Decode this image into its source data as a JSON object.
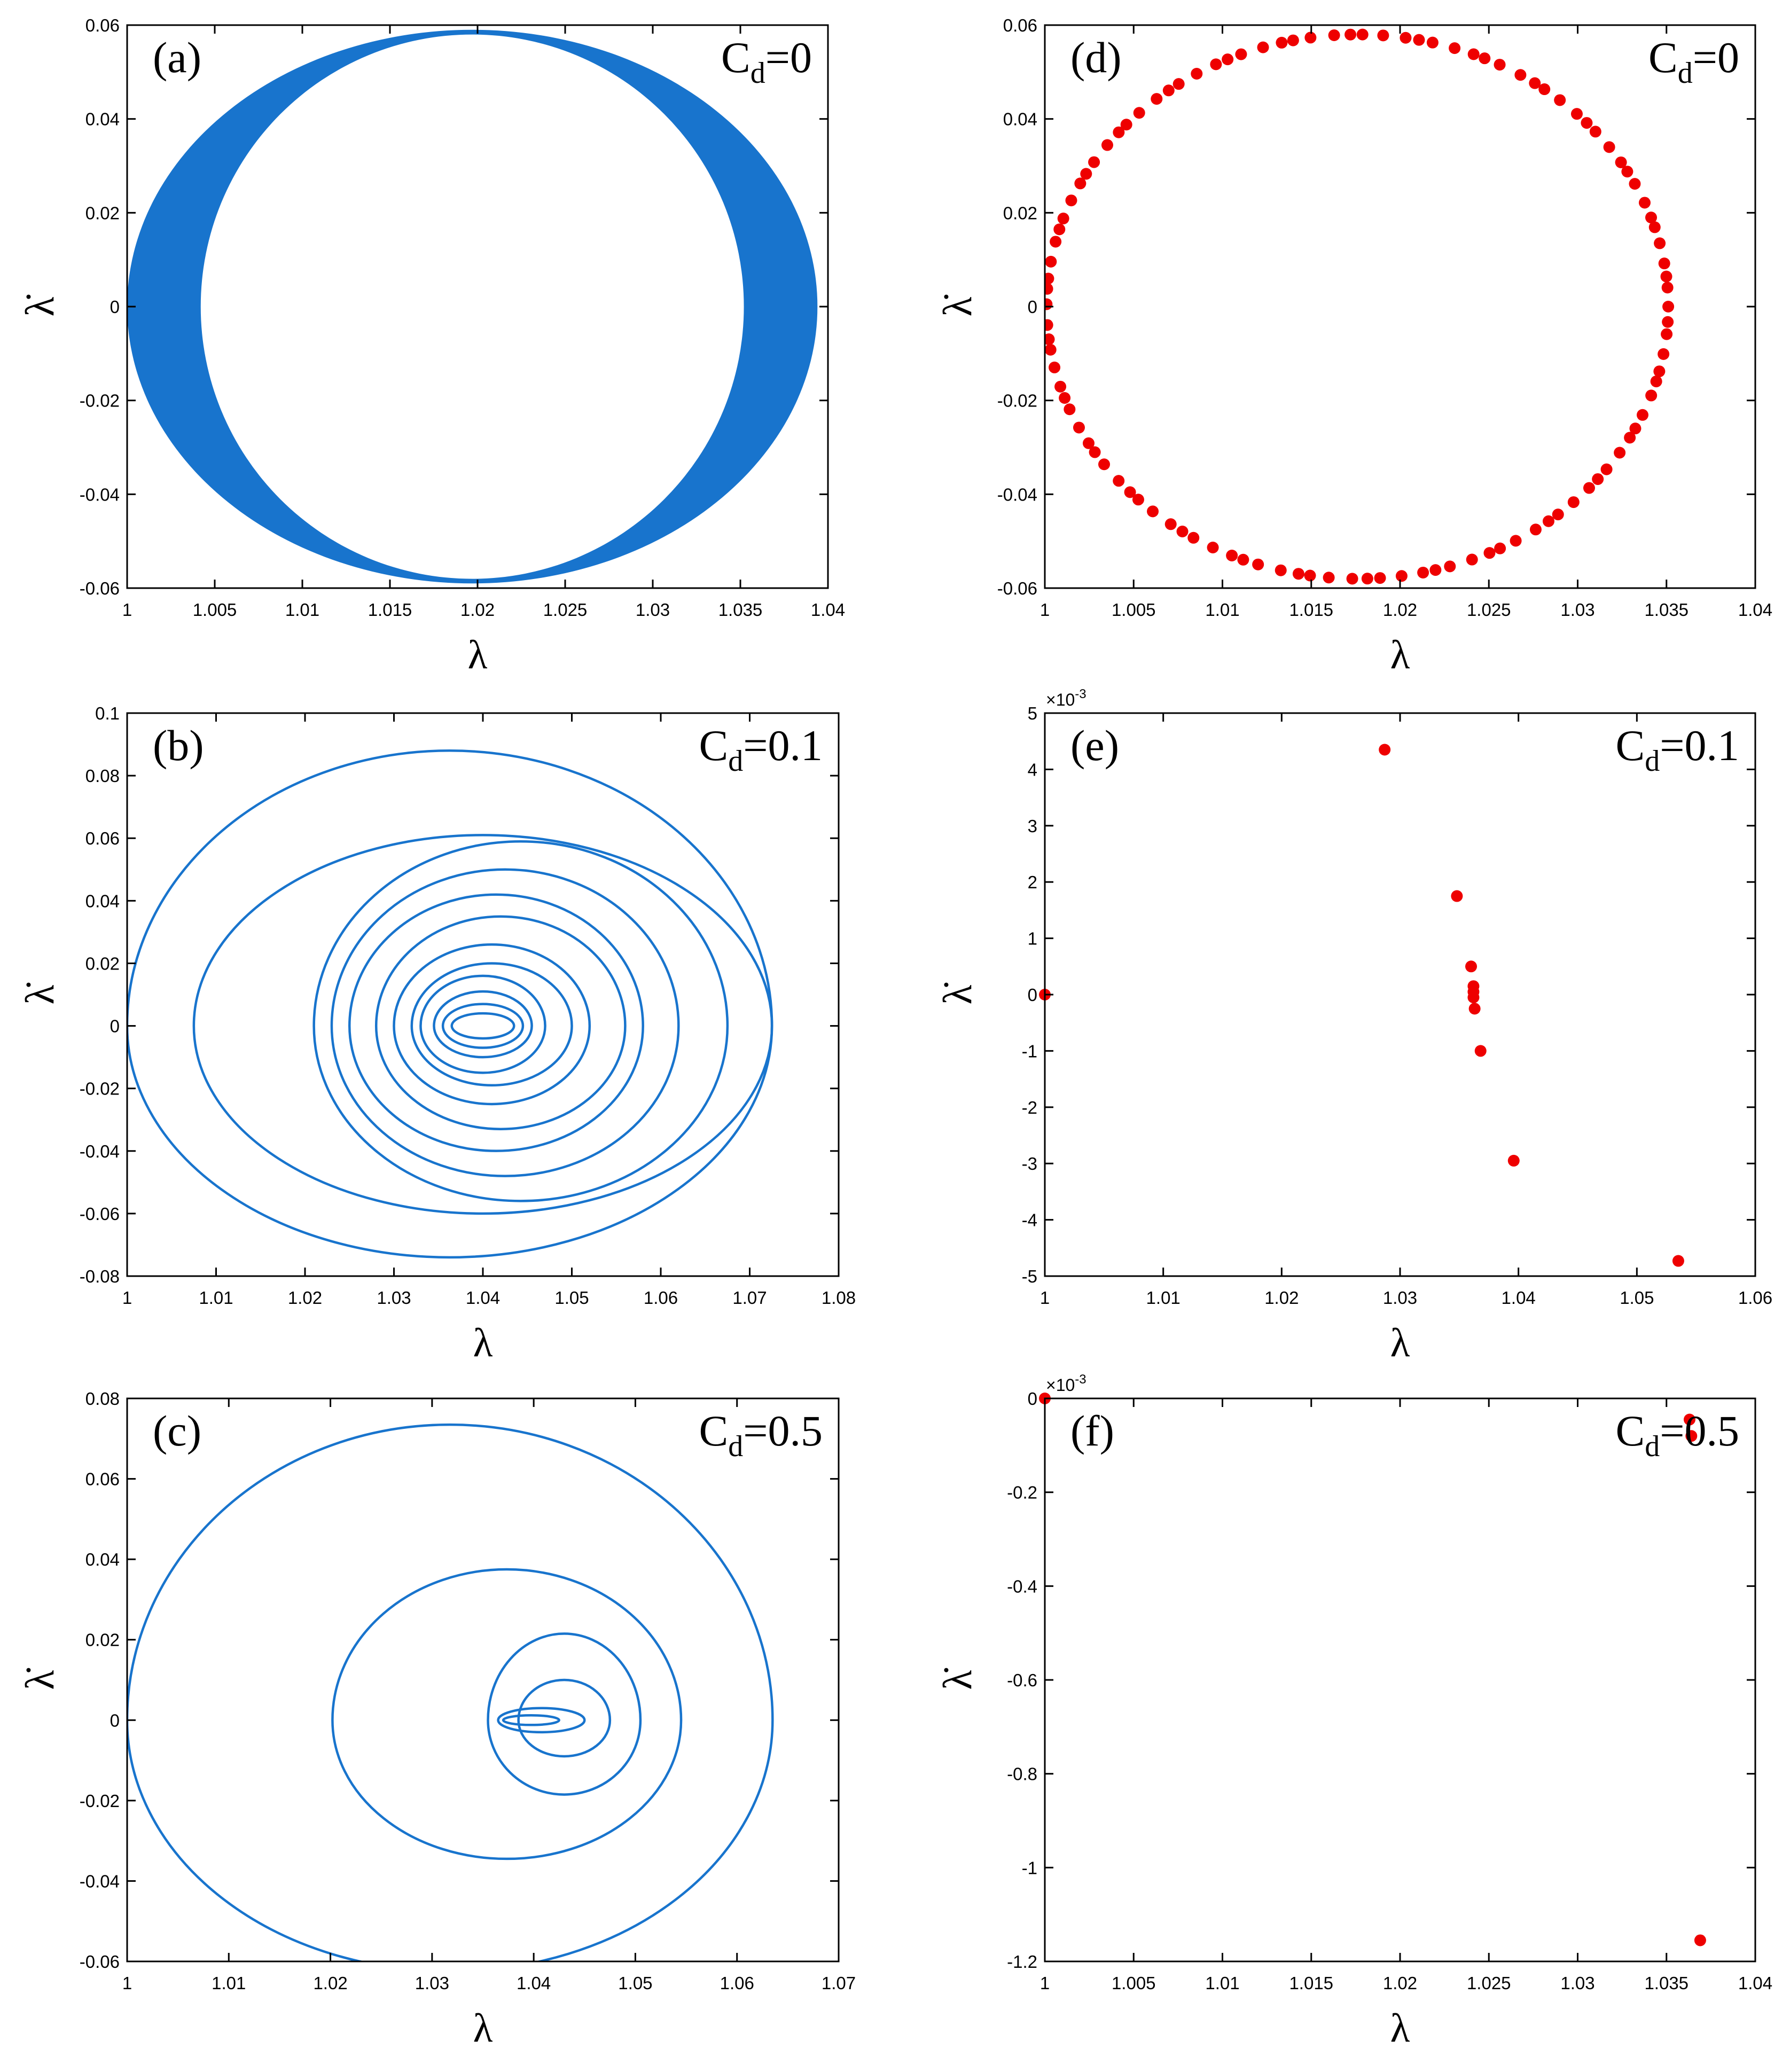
{
  "colors": {
    "trajectory": "#1874CD",
    "poincare": "#EE0000",
    "axes": "#000000"
  },
  "chart_data": [
    {
      "id": "a",
      "type": "line",
      "fill_ring": true,
      "panel_label": "(a)",
      "annotation": {
        "main": "C",
        "sub": "d",
        "rest": "=0"
      },
      "xlabel": "λ",
      "ylabel": "λ̇",
      "xlim": [
        1,
        1.04
      ],
      "ylim": [
        -0.06,
        0.06
      ],
      "xticks": [
        "1",
        "1.005",
        "1.01",
        "1.015",
        "1.02",
        "1.025",
        "1.03",
        "1.035",
        "1.04"
      ],
      "yticks": [
        "-0.06",
        "-0.04",
        "-0.02",
        "0",
        "0.02",
        "0.04",
        "0.06"
      ],
      "xtick_values": [
        1,
        1.005,
        1.01,
        1.015,
        1.02,
        1.025,
        1.03,
        1.035,
        1.04
      ],
      "ytick_values": [
        -0.06,
        -0.04,
        -0.02,
        0,
        0.02,
        0.04,
        0.06
      ],
      "ring": {
        "outer": {
          "cx": 1.0197,
          "rx": 0.0197,
          "ry": 0.059
        },
        "inner": {
          "cx": 1.0197,
          "rx": 0.0155,
          "ry": 0.058
        }
      }
    },
    {
      "id": "b",
      "type": "line",
      "panel_label": "(b)",
      "annotation": {
        "main": "C",
        "sub": "d",
        "rest": "=0.1"
      },
      "xlabel": "λ",
      "ylabel": "λ̇",
      "xlim": [
        1,
        1.08
      ],
      "ylim": [
        -0.08,
        0.1
      ],
      "xticks": [
        "1",
        "1.01",
        "1.02",
        "1.03",
        "1.04",
        "1.05",
        "1.06",
        "1.07",
        "1.08"
      ],
      "yticks": [
        "-0.08",
        "-0.06",
        "-0.04",
        "-0.02",
        "0",
        "0.02",
        "0.04",
        "0.06",
        "0.08",
        "0.1"
      ],
      "xtick_values": [
        1,
        1.01,
        1.02,
        1.03,
        1.04,
        1.05,
        1.06,
        1.07,
        1.08
      ],
      "ytick_values": [
        -0.08,
        -0.06,
        -0.04,
        -0.02,
        0,
        0.02,
        0.04,
        0.06,
        0.08,
        0.1
      ],
      "loops": [
        [
          1.0,
          1.0725,
          0.088,
          0.074
        ],
        [
          1.0075,
          1.0725,
          0.061,
          0.06
        ],
        [
          1.021,
          1.0675,
          0.059,
          0.056
        ],
        [
          1.023,
          1.062,
          0.05,
          0.048
        ],
        [
          1.025,
          1.058,
          0.042,
          0.04
        ],
        [
          1.028,
          1.056,
          0.035,
          0.033
        ],
        [
          1.03,
          1.052,
          0.026,
          0.025
        ],
        [
          1.032,
          1.05,
          0.02,
          0.019
        ],
        [
          1.033,
          1.047,
          0.016,
          0.015
        ],
        [
          1.0345,
          1.0455,
          0.011,
          0.01
        ],
        [
          1.0355,
          1.0445,
          0.007,
          0.007
        ],
        [
          1.0365,
          1.0435,
          0.004,
          0.004
        ]
      ]
    },
    {
      "id": "c",
      "type": "line",
      "panel_label": "(c)",
      "annotation": {
        "main": "C",
        "sub": "d",
        "rest": "=0.5"
      },
      "xlabel": "λ",
      "ylabel": "λ̇",
      "xlim": [
        1,
        1.07
      ],
      "ylim": [
        -0.06,
        0.08
      ],
      "xticks": [
        "1",
        "1.01",
        "1.02",
        "1.03",
        "1.04",
        "1.05",
        "1.06",
        "1.07"
      ],
      "yticks": [
        "-0.06",
        "-0.04",
        "-0.02",
        "0",
        "0.02",
        "0.04",
        "0.06",
        "0.08"
      ],
      "xtick_values": [
        1,
        1.01,
        1.02,
        1.03,
        1.04,
        1.05,
        1.06,
        1.07
      ],
      "ytick_values": [
        -0.06,
        -0.04,
        -0.02,
        0,
        0.02,
        0.04,
        0.06,
        0.08
      ],
      "loops": [
        [
          1.0,
          1.0635,
          0.0735,
          0.0625
        ],
        [
          1.0202,
          1.0545,
          0.0375,
          0.0345
        ],
        [
          1.0355,
          1.0505,
          0.0215,
          0.0185
        ],
        [
          1.0385,
          1.0475,
          0.01,
          0.009
        ],
        [
          1.0365,
          1.045,
          0.003,
          0.003
        ],
        [
          1.037,
          1.0425,
          0.0012,
          0.0012
        ]
      ]
    },
    {
      "id": "d",
      "type": "scatter",
      "panel_label": "(d)",
      "annotation": {
        "main": "C",
        "sub": "d",
        "rest": "=0"
      },
      "xlabel": "λ",
      "ylabel": "λ̇",
      "xlim": [
        1,
        1.04
      ],
      "ylim": [
        -0.06,
        0.06
      ],
      "xticks": [
        "1",
        "1.005",
        "1.01",
        "1.015",
        "1.02",
        "1.025",
        "1.03",
        "1.035",
        "1.04"
      ],
      "yticks": [
        "-0.06",
        "-0.04",
        "-0.02",
        "0",
        "0.02",
        "0.04",
        "0.06"
      ],
      "xtick_values": [
        1,
        1.005,
        1.01,
        1.015,
        1.02,
        1.025,
        1.03,
        1.035,
        1.04
      ],
      "ytick_values": [
        -0.06,
        -0.04,
        -0.02,
        0,
        0.02,
        0.04,
        0.06
      ],
      "ellipse_points": {
        "cx": 1.0176,
        "rx": 0.0175,
        "ry": 0.058,
        "count": 110
      }
    },
    {
      "id": "e",
      "type": "scatter",
      "panel_label": "(e)",
      "annotation": {
        "main": "C",
        "sub": "d",
        "rest": "=0.1"
      },
      "xlabel": "λ",
      "ylabel": "λ̇",
      "scale_label": "×10",
      "scale_exp": "-3",
      "xlim": [
        1,
        1.06
      ],
      "ylim": [
        -5,
        5
      ],
      "xticks": [
        "1",
        "1.01",
        "1.02",
        "1.03",
        "1.04",
        "1.05",
        "1.06"
      ],
      "yticks": [
        "-5",
        "-4",
        "-3",
        "-2",
        "-1",
        "0",
        "1",
        "2",
        "3",
        "4",
        "5"
      ],
      "xtick_values": [
        1,
        1.01,
        1.02,
        1.03,
        1.04,
        1.05,
        1.06
      ],
      "ytick_values": [
        -5,
        -4,
        -3,
        -2,
        -1,
        0,
        1,
        2,
        3,
        4,
        5
      ],
      "points": [
        [
          1.0,
          0.0
        ],
        [
          1.0287,
          4.35
        ],
        [
          1.0348,
          1.75
        ],
        [
          1.036,
          0.5
        ],
        [
          1.0362,
          0.15
        ],
        [
          1.0362,
          0.05
        ],
        [
          1.0362,
          -0.05
        ],
        [
          1.0363,
          -0.25
        ],
        [
          1.0368,
          -1.0
        ],
        [
          1.0396,
          -2.95
        ],
        [
          1.0535,
          -4.73
        ]
      ]
    },
    {
      "id": "f",
      "type": "scatter",
      "panel_label": "(f)",
      "annotation": {
        "main": "C",
        "sub": "d",
        "rest": "=0.5"
      },
      "xlabel": "λ",
      "ylabel": "λ̇",
      "scale_label": "×10",
      "scale_exp": "-3",
      "xlim": [
        1,
        1.04
      ],
      "ylim": [
        -1.2,
        0
      ],
      "xticks": [
        "1",
        "1.005",
        "1.01",
        "1.015",
        "1.02",
        "1.025",
        "1.03",
        "1.035",
        "1.04"
      ],
      "yticks": [
        "-1.2",
        "-1",
        "-0.8",
        "-0.6",
        "-0.4",
        "-0.2",
        "0"
      ],
      "xtick_values": [
        1,
        1.005,
        1.01,
        1.015,
        1.02,
        1.025,
        1.03,
        1.035,
        1.04
      ],
      "ytick_values": [
        -1.2,
        -1,
        -0.8,
        -0.6,
        -0.4,
        -0.2,
        0
      ],
      "points": [
        [
          1.0,
          0.0
        ],
        [
          1.0363,
          -0.045
        ],
        [
          1.0364,
          -0.08
        ],
        [
          1.0369,
          -1.155
        ]
      ]
    }
  ]
}
